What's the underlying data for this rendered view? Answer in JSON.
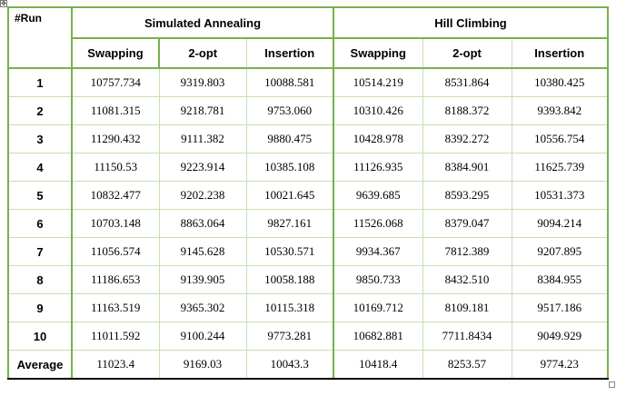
{
  "table": {
    "corner_label": "#Run",
    "groups": [
      "Simulated Annealing",
      "Hill Climbing"
    ],
    "subheaders": [
      "Swapping",
      "2-opt",
      "Insertion",
      "Swapping",
      "2-opt",
      "Insertion"
    ],
    "rows": [
      {
        "label": "1",
        "values": [
          "10757.734",
          "9319.803",
          "10088.581",
          "10514.219",
          "8531.864",
          "10380.425"
        ]
      },
      {
        "label": "2",
        "values": [
          "11081.315",
          "9218.781",
          "9753.060",
          "10310.426",
          "8188.372",
          "9393.842"
        ]
      },
      {
        "label": "3",
        "values": [
          "11290.432",
          "9111.382",
          "9880.475",
          "10428.978",
          "8392.272",
          "10556.754"
        ]
      },
      {
        "label": "4",
        "values": [
          "11150.53",
          "9223.914",
          "10385.108",
          "11126.935",
          "8384.901",
          "11625.739"
        ]
      },
      {
        "label": "5",
        "values": [
          "10832.477",
          "9202.238",
          "10021.645",
          "9639.685",
          "8593.295",
          "10531.373"
        ]
      },
      {
        "label": "6",
        "values": [
          "10703.148",
          "8863.064",
          "9827.161",
          "11526.068",
          "8379.047",
          "9094.214"
        ]
      },
      {
        "label": "7",
        "values": [
          "11056.574",
          "9145.628",
          "10530.571",
          "9934.367",
          "7812.389",
          "9207.895"
        ]
      },
      {
        "label": "8",
        "values": [
          "11186.653",
          "9139.905",
          "10058.188",
          "9850.733",
          "8432.510",
          "8384.955"
        ]
      },
      {
        "label": "9",
        "values": [
          "11163.519",
          "9365.302",
          "10115.318",
          "10169.712",
          "8109.181",
          "9517.186"
        ]
      },
      {
        "label": "10",
        "values": [
          "11011.592",
          "9100.244",
          "9773.281",
          "10682.881",
          "7711.8434",
          "9049.929"
        ]
      },
      {
        "label": "Average",
        "values": [
          "11023.4",
          "9169.03",
          "10043.3",
          "10418.4",
          "8253.57",
          "9774.23"
        ]
      }
    ]
  },
  "colors": {
    "frame_green": "#77b14b",
    "grid_green": "#c6dfb2",
    "bottom_rule": "#000000"
  },
  "icons": {
    "table_move_handle": "four-arrow-move-icon",
    "table_resize_handle": "resize-square-icon"
  }
}
